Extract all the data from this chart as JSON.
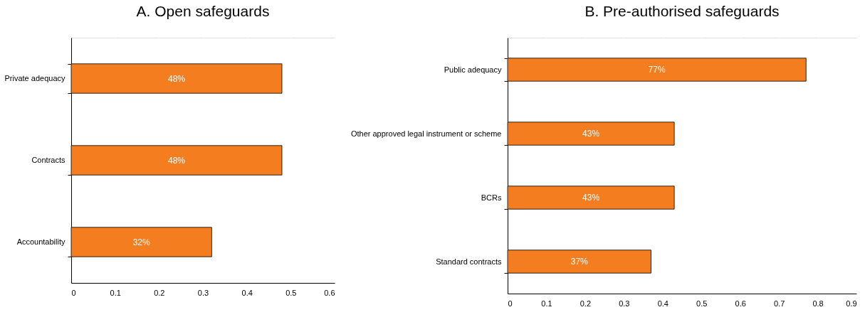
{
  "chart_data": [
    {
      "type": "bar",
      "orientation": "horizontal",
      "title": "A. Open safeguards",
      "categories": [
        "Private adequacy",
        "Contracts",
        "Accountability"
      ],
      "values": [
        0.48,
        0.48,
        0.32
      ],
      "value_labels": [
        "48%",
        "48%",
        "32%"
      ],
      "color": "#f47d20",
      "xlim": [
        0,
        0.6
      ],
      "xticks": [
        0,
        0.1,
        0.2,
        0.3,
        0.4,
        0.5,
        0.6
      ],
      "grid": "x"
    },
    {
      "type": "bar",
      "orientation": "horizontal",
      "title": "B. Pre-authorised safeguards",
      "categories": [
        "Public adequacy",
        "Other approved legal instrument or scheme",
        "BCRs",
        "Standard contracts"
      ],
      "values": [
        0.77,
        0.43,
        0.43,
        0.37
      ],
      "value_labels": [
        "77%",
        "43%",
        "43%",
        "37%"
      ],
      "color": "#f47d20",
      "xlim": [
        0,
        0.9
      ],
      "xticks": [
        0,
        0.1,
        0.2,
        0.3,
        0.4,
        0.5,
        0.6,
        0.7,
        0.8,
        0.9
      ],
      "grid": true
    }
  ]
}
